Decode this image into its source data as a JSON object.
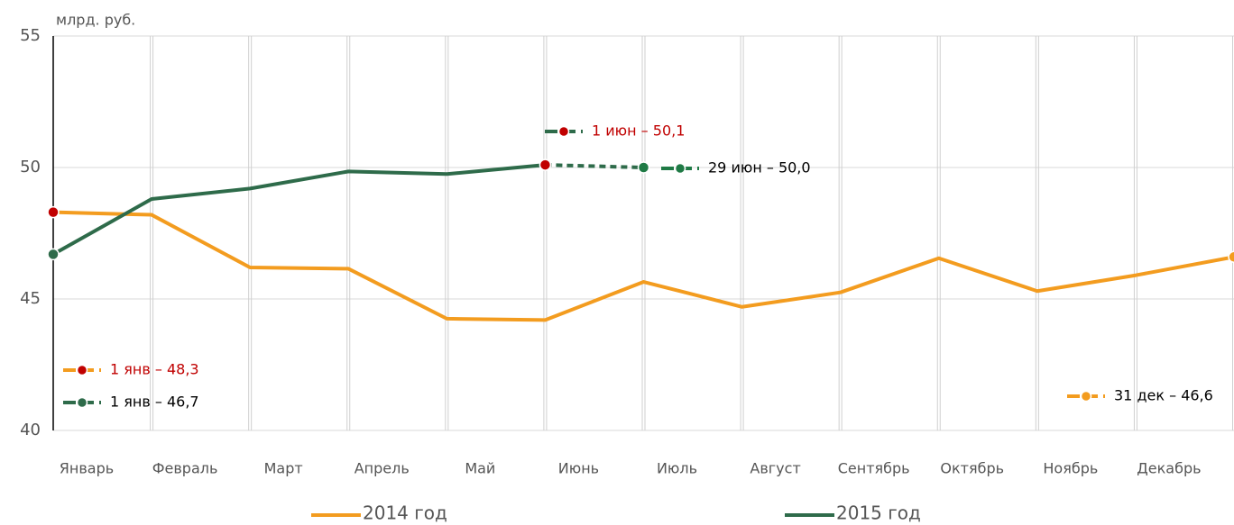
{
  "chart_data": {
    "type": "line",
    "y_label": "млрд. руб.",
    "categories": [
      "Январь",
      "Февраль",
      "Март",
      "Апрель",
      "Май",
      "Июнь",
      "Июль",
      "Август",
      "Сентябрь",
      "Октябрь",
      "Ноябрь",
      "Декабрь",
      null
    ],
    "series": [
      {
        "name": "2014 год",
        "color": "#f39c1f",
        "values": [
          48.3,
          48.2,
          46.2,
          46.15,
          44.25,
          44.2,
          45.65,
          44.7,
          45.25,
          46.55,
          45.3,
          45.9,
          46.6
        ],
        "highlight": [
          {
            "index": 0,
            "color": "#c00000"
          },
          {
            "index": 12,
            "color": "#f39c1f"
          }
        ]
      },
      {
        "name": "2015 год",
        "color": "#2e6b4a",
        "values": [
          46.7,
          48.8,
          49.2,
          49.85,
          49.75,
          50.1,
          50.0,
          null,
          null,
          null,
          null,
          null,
          null
        ],
        "dashed_from": 5,
        "highlight": [
          {
            "index": 0,
            "color": "#2e6b4a"
          },
          {
            "index": 5,
            "color": "#c00000"
          },
          {
            "index": 6,
            "color": "#1f7a45"
          }
        ]
      }
    ],
    "annotations": [
      {
        "text": "1 янв – 48,3",
        "color": "#c00000",
        "line_color": "#f39c1f"
      },
      {
        "text": "1 янв – 46,7",
        "color": "#000000",
        "line_color": "#2e6b4a"
      },
      {
        "text": "1 июн – 50,1",
        "color": "#c00000",
        "line_color": "#2e6b4a"
      },
      {
        "text": "29 июн – 50,0",
        "color": "#000000",
        "line_color": "#1f7a45"
      },
      {
        "text": "31 дек – 46,6",
        "color": "#000000",
        "line_color": "#f39c1f"
      }
    ],
    "ylim": [
      40,
      55
    ],
    "yticks": [
      40,
      45,
      50,
      55
    ],
    "grid": true
  }
}
